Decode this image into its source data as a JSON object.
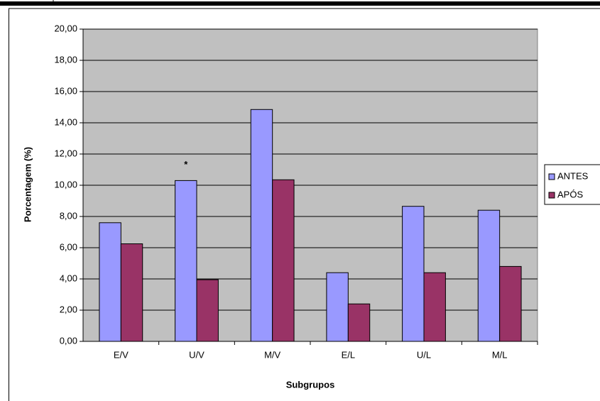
{
  "chart_data": {
    "type": "bar",
    "y_label": "Porcentagem (%)",
    "x_label": "Subgrupos",
    "categories": [
      "E/V",
      "U/V",
      "M/V",
      "E/L",
      "U/L",
      "M/L"
    ],
    "series": [
      {
        "name": "ANTES",
        "color": "#9999ff",
        "values": [
          7.6,
          10.3,
          14.85,
          4.4,
          8.65,
          8.4
        ]
      },
      {
        "name": "APÓS",
        "color": "#993366",
        "values": [
          6.25,
          3.95,
          10.35,
          2.4,
          4.4,
          4.8
        ]
      }
    ],
    "annotations": [
      "*"
    ],
    "ylim": [
      0,
      20
    ],
    "yticks": [
      {
        "value": 0,
        "label": "0,00"
      },
      {
        "value": 2,
        "label": "2,00"
      },
      {
        "value": 4,
        "label": "4,00"
      },
      {
        "value": 6,
        "label": "6,00"
      },
      {
        "value": 8,
        "label": "8,00"
      },
      {
        "value": 10,
        "label": "10,00"
      },
      {
        "value": 12,
        "label": "12,00"
      },
      {
        "value": 14,
        "label": "14,00"
      },
      {
        "value": 16,
        "label": "16,00"
      },
      {
        "value": 18,
        "label": "18,00"
      },
      {
        "value": 20,
        "label": "20,00"
      }
    ],
    "grid": true,
    "background": "#c0c0c0",
    "legend": "right"
  }
}
